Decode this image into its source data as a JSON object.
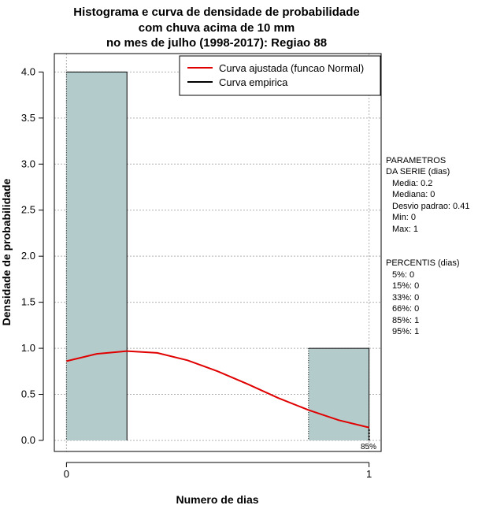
{
  "chart_data": {
    "type": "bar",
    "title_lines": [
      "Histograma e curva de densidade de probabilidade",
      "com chuva acima de 10 mm",
      "no mes de julho (1998-2017): Regiao 88"
    ],
    "xlabel": "Numero de dias",
    "ylabel": "Densidade de probabilidade",
    "xlim": [
      -0.04,
      1.04
    ],
    "ylim": [
      -0.12,
      4.2
    ],
    "x_ticks": [
      0,
      1
    ],
    "x_tick_labels": [
      "0",
      "1"
    ],
    "y_ticks": [
      0,
      0.5,
      1,
      1.5,
      2,
      2.5,
      3,
      3.5,
      4
    ],
    "y_tick_labels": [
      "0.0",
      "0.5",
      "1.0",
      "1.5",
      "2.0",
      "2.5",
      "3.0",
      "3.5",
      "4.0"
    ],
    "grid": true,
    "bins": [
      {
        "x0": 0,
        "x1": 0.2,
        "density": 4.0
      },
      {
        "x0": 0.8,
        "x1": 1.0,
        "density": 1.0
      }
    ],
    "series": [
      {
        "name": "Curva ajustada (funcao Normal)",
        "color": "#e00000",
        "x": [
          0,
          0.1,
          0.2,
          0.3,
          0.4,
          0.5,
          0.6,
          0.7,
          0.8,
          0.9,
          1.0
        ],
        "y": [
          0.86,
          0.94,
          0.97,
          0.95,
          0.87,
          0.75,
          0.61,
          0.46,
          0.33,
          0.22,
          0.14
        ]
      },
      {
        "name": "Curva empirica",
        "color": "#000000",
        "x": [],
        "y": []
      }
    ],
    "legend_position": "top-right",
    "percentile_marker": {
      "x": 1,
      "label": "85%"
    },
    "bar_color": "#b4cbcb"
  },
  "side_panel": {
    "params_title": [
      "PARAMETROS",
      "DA SERIE (dias)"
    ],
    "params": [
      "Media: 0.2",
      "Mediana: 0",
      "Desvio padrao: 0.41",
      "Min: 0",
      "Max: 1"
    ],
    "percentiles_title": "PERCENTIS (dias)",
    "percentiles": [
      "5%: 0",
      "15%: 0",
      "33%: 0",
      "66%: 0",
      "85%: 1",
      "95%: 1"
    ]
  }
}
